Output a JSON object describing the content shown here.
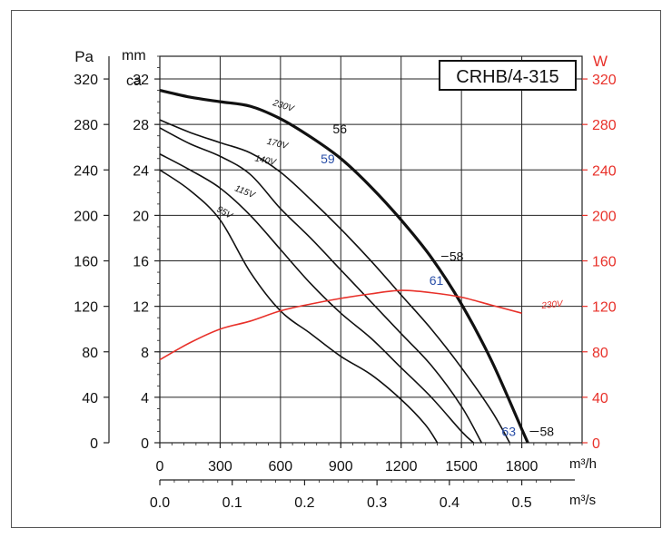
{
  "chart_data": {
    "type": "line",
    "title": "CRHB/4-315",
    "left_axis_outer": {
      "unit": "Pa",
      "ticks": [
        0,
        40,
        80,
        120,
        160,
        200,
        240,
        280,
        320
      ]
    },
    "left_axis_inner": {
      "unit_lines": [
        "mm",
        "ca"
      ],
      "ticks": [
        0,
        4,
        8,
        12,
        16,
        20,
        24,
        28,
        32
      ]
    },
    "right_axis": {
      "unit": "W",
      "ticks": [
        0,
        40,
        80,
        120,
        160,
        200,
        240,
        280,
        320
      ],
      "color": "#e8312a"
    },
    "x_axis_m3h": {
      "unit": "m³/h",
      "ticks": [
        0,
        300,
        600,
        900,
        1200,
        1500,
        1800
      ],
      "range": [
        0,
        2100
      ]
    },
    "x_axis_m3s": {
      "unit": "m³/s",
      "ticks": [
        "0.0",
        "0.1",
        "0.2",
        "0.3",
        "0.4",
        "0.5"
      ]
    },
    "ylim_pa": [
      0,
      340
    ],
    "grid": true,
    "series": [
      {
        "name": "230V",
        "color": "#111111",
        "width": 3.2,
        "x": [
          0,
          150,
          300,
          450,
          600,
          750,
          900,
          1050,
          1200,
          1350,
          1500,
          1650,
          1800,
          1830
        ],
        "y": [
          310,
          304,
          300,
          296,
          285,
          269,
          250,
          225,
          196,
          163,
          122,
          72,
          12,
          0
        ]
      },
      {
        "name": "170V",
        "color": "#111111",
        "width": 1.6,
        "x": [
          0,
          150,
          300,
          450,
          600,
          750,
          900,
          1050,
          1200,
          1350,
          1500,
          1650,
          1740
        ],
        "y": [
          284,
          273,
          264,
          255,
          238,
          214,
          188,
          160,
          130,
          100,
          66,
          28,
          0
        ]
      },
      {
        "name": "140V",
        "color": "#111111",
        "width": 1.6,
        "x": [
          0,
          150,
          300,
          450,
          600,
          750,
          900,
          1050,
          1200,
          1350,
          1500,
          1600
        ],
        "y": [
          277,
          263,
          252,
          236,
          206,
          180,
          152,
          124,
          96,
          68,
          32,
          0
        ]
      },
      {
        "name": "115V",
        "color": "#111111",
        "width": 1.6,
        "x": [
          0,
          150,
          300,
          450,
          600,
          750,
          900,
          1050,
          1200,
          1350,
          1500,
          1560
        ],
        "y": [
          254,
          240,
          224,
          200,
          170,
          140,
          114,
          92,
          66,
          40,
          10,
          0
        ]
      },
      {
        "name": "95V",
        "color": "#111111",
        "width": 1.6,
        "x": [
          0,
          150,
          300,
          450,
          600,
          750,
          900,
          1050,
          1200,
          1320,
          1380
        ],
        "y": [
          240,
          222,
          196,
          150,
          116,
          96,
          76,
          60,
          38,
          16,
          0
        ]
      },
      {
        "name": "230V",
        "axis": "W",
        "color": "#e8312a",
        "width": 1.6,
        "x": [
          0,
          150,
          300,
          450,
          600,
          750,
          900,
          1050,
          1200,
          1350,
          1500,
          1650,
          1800
        ],
        "y": [
          73,
          88,
          100,
          107,
          116,
          122,
          127,
          131,
          134,
          132,
          128,
          121,
          114
        ]
      }
    ],
    "curve_labels": [
      {
        "text": "230V",
        "x": 560,
        "y": 297,
        "rot": 18
      },
      {
        "text": "170V",
        "x": 530,
        "y": 263,
        "rot": 14
      },
      {
        "text": "140V",
        "x": 470,
        "y": 248,
        "rot": 12
      },
      {
        "text": "115V",
        "x": 370,
        "y": 222,
        "rot": 22
      },
      {
        "text": "95V",
        "x": 280,
        "y": 204,
        "rot": 30
      },
      {
        "text": "230V",
        "x": 1900,
        "y": 118,
        "rot": -6,
        "color": "#e8312a"
      }
    ],
    "annotations": [
      {
        "text": "56",
        "x": 860,
        "y": 272,
        "color": "#111111"
      },
      {
        "text": "59",
        "x": 800,
        "y": 246,
        "color": "#2a4fa8"
      },
      {
        "text": "58",
        "x": 1440,
        "y": 160,
        "color": "#111111"
      },
      {
        "text": "61",
        "x": 1340,
        "y": 139,
        "color": "#2a4fa8"
      },
      {
        "text": "63",
        "x": 1700,
        "y": 6,
        "color": "#2a4fa8"
      },
      {
        "text": "58",
        "x": 1890,
        "y": 6,
        "color": "#111111"
      }
    ]
  }
}
